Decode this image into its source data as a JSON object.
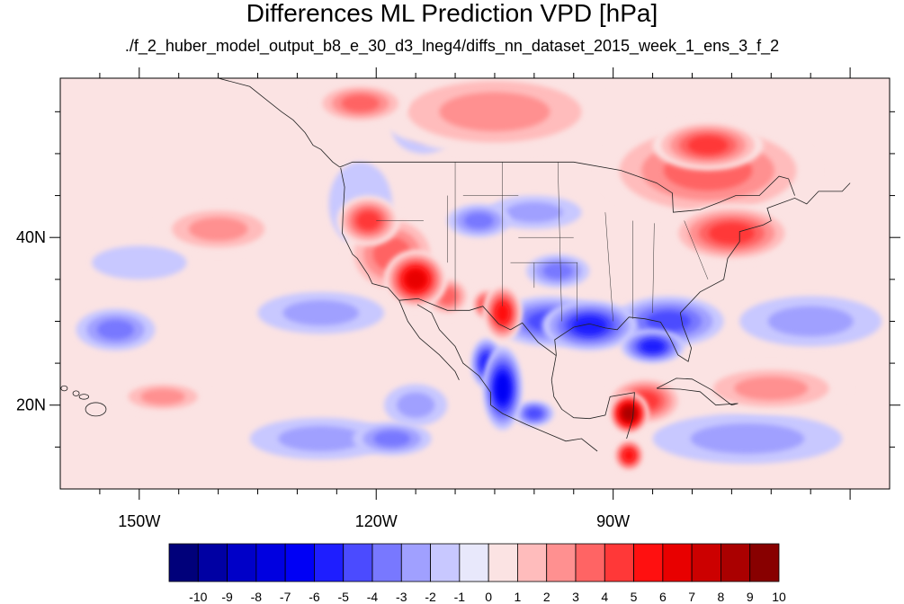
{
  "title": "Differences ML Prediction VPD [hPa]",
  "subtitle": "./f_2_huber_model_output_b8_e_30_d3_lneg4/diffs_nn_dataset_2015_week_1_ens_3_f_2",
  "map": {
    "lon_range": [
      -160,
      -55
    ],
    "lat_range": [
      10,
      59
    ],
    "lon_ticks": [
      {
        "value": -150,
        "label": "150W"
      },
      {
        "value": -120,
        "label": "120W"
      },
      {
        "value": -90,
        "label": "90W"
      }
    ],
    "lat_ticks": [
      {
        "value": 40,
        "label": "40N"
      },
      {
        "value": 20,
        "label": "20N"
      }
    ],
    "projection": "cylindrical equidistant"
  },
  "colorbar": {
    "labels": [
      "-10",
      "-9",
      "-8",
      "-7",
      "-6",
      "-5",
      "-4",
      "-3",
      "-2",
      "-1",
      "0",
      "1",
      "2",
      "3",
      "4",
      "5",
      "6",
      "7",
      "8",
      "9",
      "10"
    ],
    "colors": [
      "#00007a",
      "#0000a3",
      "#0000c8",
      "#0000e0",
      "#0000f5",
      "#1e1eff",
      "#4b4bff",
      "#7878ff",
      "#a0a0ff",
      "#c8c8ff",
      "#e8e8fb",
      "#fbe3e3",
      "#ffbcbc",
      "#ff9090",
      "#ff6464",
      "#ff3838",
      "#ff1010",
      "#e80000",
      "#cc0000",
      "#aa0000",
      "#880000"
    ]
  },
  "field_blobs": [
    {
      "lon": -115,
      "lat": 35,
      "rx": 4,
      "ry": 3.5,
      "value": 7
    },
    {
      "lon": -118,
      "lat": 38,
      "rx": 6,
      "ry": 5,
      "value": 4
    },
    {
      "lon": -121,
      "lat": 42,
      "rx": 4,
      "ry": 3,
      "value": 5
    },
    {
      "lon": -111,
      "lat": 33,
      "rx": 3,
      "ry": 2.5,
      "value": 4
    },
    {
      "lon": -104,
      "lat": 31,
      "rx": 2.5,
      "ry": 3.5,
      "value": 6
    },
    {
      "lon": -106,
      "lat": 32,
      "rx": 2,
      "ry": 2,
      "value": 5
    },
    {
      "lon": -75,
      "lat": 40.5,
      "rx": 8,
      "ry": 3.5,
      "value": 5
    },
    {
      "lon": -78,
      "lat": 48,
      "rx": 14,
      "ry": 6,
      "value": 4
    },
    {
      "lon": -78,
      "lat": 51,
      "rx": 7,
      "ry": 3,
      "value": 5
    },
    {
      "lon": -105,
      "lat": 55,
      "rx": 15,
      "ry": 5,
      "value": 3
    },
    {
      "lon": -122,
      "lat": 56,
      "rx": 6,
      "ry": 2.5,
      "value": 4
    },
    {
      "lon": -88,
      "lat": 19,
      "rx": 2.5,
      "ry": 2.5,
      "value": 9
    },
    {
      "lon": -86,
      "lat": 20.5,
      "rx": 5,
      "ry": 3,
      "value": 5
    },
    {
      "lon": -88,
      "lat": 14,
      "rx": 2,
      "ry": 2,
      "value": 6
    },
    {
      "lon": -70,
      "lat": 22,
      "rx": 10,
      "ry": 3,
      "value": 3
    },
    {
      "lon": -140,
      "lat": 41,
      "rx": 8,
      "ry": 3,
      "value": 3
    },
    {
      "lon": -147,
      "lat": 21,
      "rx": 6,
      "ry": 2,
      "value": 3
    },
    {
      "lon": -98,
      "lat": 30,
      "rx": 7,
      "ry": 3,
      "value": -4
    },
    {
      "lon": -93,
      "lat": 29.5,
      "rx": 6,
      "ry": 3,
      "value": -5
    },
    {
      "lon": -83,
      "lat": 30,
      "rx": 7,
      "ry": 3,
      "value": -4
    },
    {
      "lon": -85,
      "lat": 27,
      "rx": 4,
      "ry": 2,
      "value": -5
    },
    {
      "lon": -104,
      "lat": 22,
      "rx": 2.5,
      "ry": 5,
      "value": -6
    },
    {
      "lon": -106,
      "lat": 25,
      "rx": 2,
      "ry": 3,
      "value": -5
    },
    {
      "lon": -100,
      "lat": 19,
      "rx": 2.5,
      "ry": 1.5,
      "value": -4
    },
    {
      "lon": -97,
      "lat": 36,
      "rx": 4,
      "ry": 2,
      "value": -3
    },
    {
      "lon": -107,
      "lat": 42,
      "rx": 4,
      "ry": 2,
      "value": -3
    },
    {
      "lon": -100,
      "lat": 43,
      "rx": 6,
      "ry": 2,
      "value": -2
    },
    {
      "lon": -114,
      "lat": 53,
      "rx": 4,
      "ry": 3,
      "value": -2
    },
    {
      "lon": -153,
      "lat": 29,
      "rx": 5,
      "ry": 2.5,
      "value": -3
    },
    {
      "lon": -127,
      "lat": 31,
      "rx": 8,
      "ry": 2.5,
      "value": -2
    },
    {
      "lon": -115,
      "lat": 20,
      "rx": 4,
      "ry": 2.5,
      "value": -2
    },
    {
      "lon": -127,
      "lat": 16,
      "rx": 9,
      "ry": 2.5,
      "value": -2
    },
    {
      "lon": -118,
      "lat": 16,
      "rx": 5,
      "ry": 2,
      "value": -3
    },
    {
      "lon": -73,
      "lat": 16,
      "rx": 12,
      "ry": 3,
      "value": -2
    },
    {
      "lon": -65,
      "lat": 30,
      "rx": 9,
      "ry": 3,
      "value": -2
    },
    {
      "lon": -122,
      "lat": 44,
      "rx": 4,
      "ry": 5,
      "value": -1
    },
    {
      "lon": -150,
      "lat": 37,
      "rx": 6,
      "ry": 2,
      "value": -1
    }
  ]
}
